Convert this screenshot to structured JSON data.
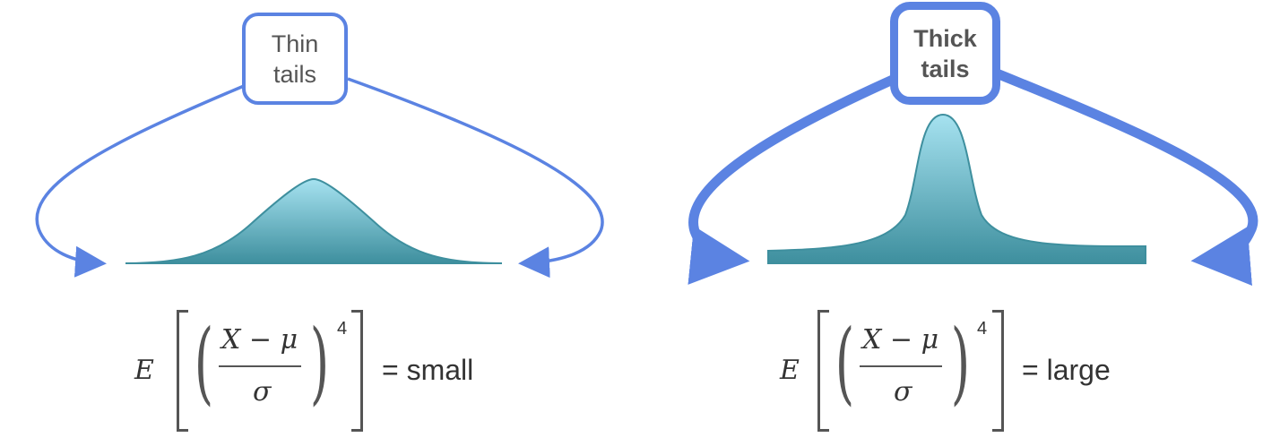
{
  "left_panel": {
    "box_label_line1": "Thin",
    "box_label_line2": "tails",
    "formula": {
      "expectation": "E",
      "var": "X",
      "minus": "−",
      "mean": "μ",
      "sd": "σ",
      "power": "4",
      "rhs": "= small"
    }
  },
  "right_panel": {
    "box_label_line1": "Thick",
    "box_label_line2": "tails",
    "formula": {
      "expectation": "E",
      "var": "X",
      "minus": "−",
      "mean": "μ",
      "sd": "σ",
      "power": "4",
      "rhs": "= large"
    }
  },
  "colors": {
    "arrow": "#5b83e2",
    "curve_top": "#a6e2f0",
    "curve_bottom": "#3e8f9e"
  }
}
